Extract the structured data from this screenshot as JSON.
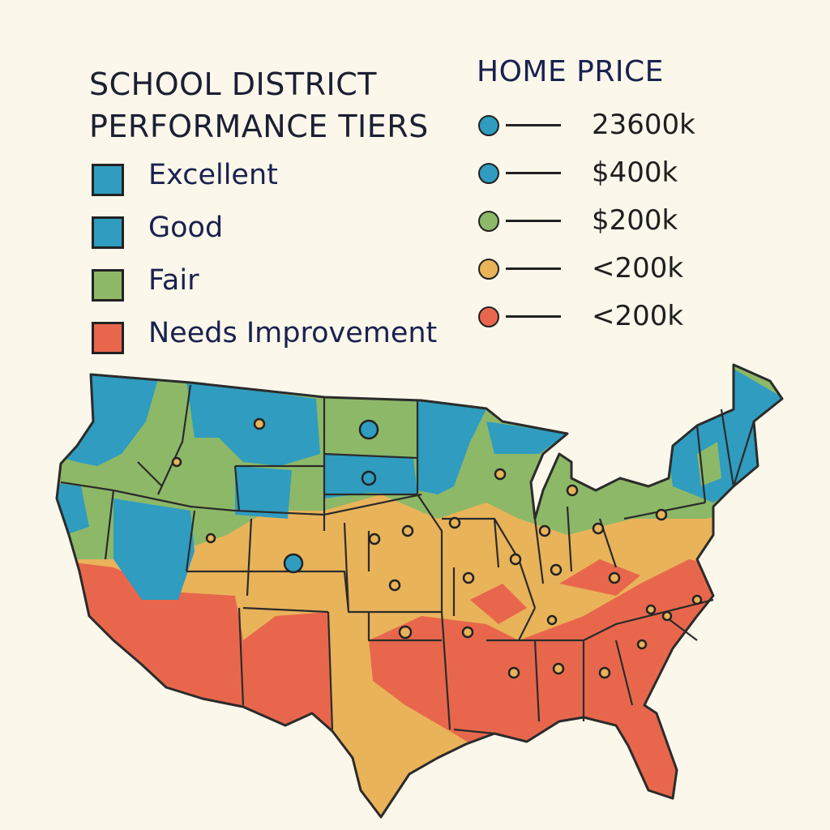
{
  "title": {
    "line1": "SCHOOL DISTRICT",
    "line2": "PERFORMANCE TIERS"
  },
  "tiers": [
    {
      "label": "Excellent",
      "color": "#2f9cc0"
    },
    {
      "label": "Good",
      "color": "#2f9cc0"
    },
    {
      "label": "Fair",
      "color": "#8db868"
    },
    {
      "label": "Needs Improvement",
      "color": "#e8674c"
    }
  ],
  "home_price": {
    "title": "HOME PRICE",
    "items": [
      {
        "label": "23600k",
        "color": "#2f9cc0"
      },
      {
        "label": "$400k",
        "color": "#2f9cc0"
      },
      {
        "label": "$200k",
        "color": "#8db868"
      },
      {
        "label": "<200k",
        "color": "#e9b35a"
      },
      {
        "label": "<200k",
        "color": "#e8674c"
      }
    ]
  },
  "map": {
    "colors": {
      "blue": "#2f9cc0",
      "green": "#8db868",
      "orange": "#e9b35a",
      "red": "#e8674c",
      "border": "#2b2b2b"
    }
  }
}
